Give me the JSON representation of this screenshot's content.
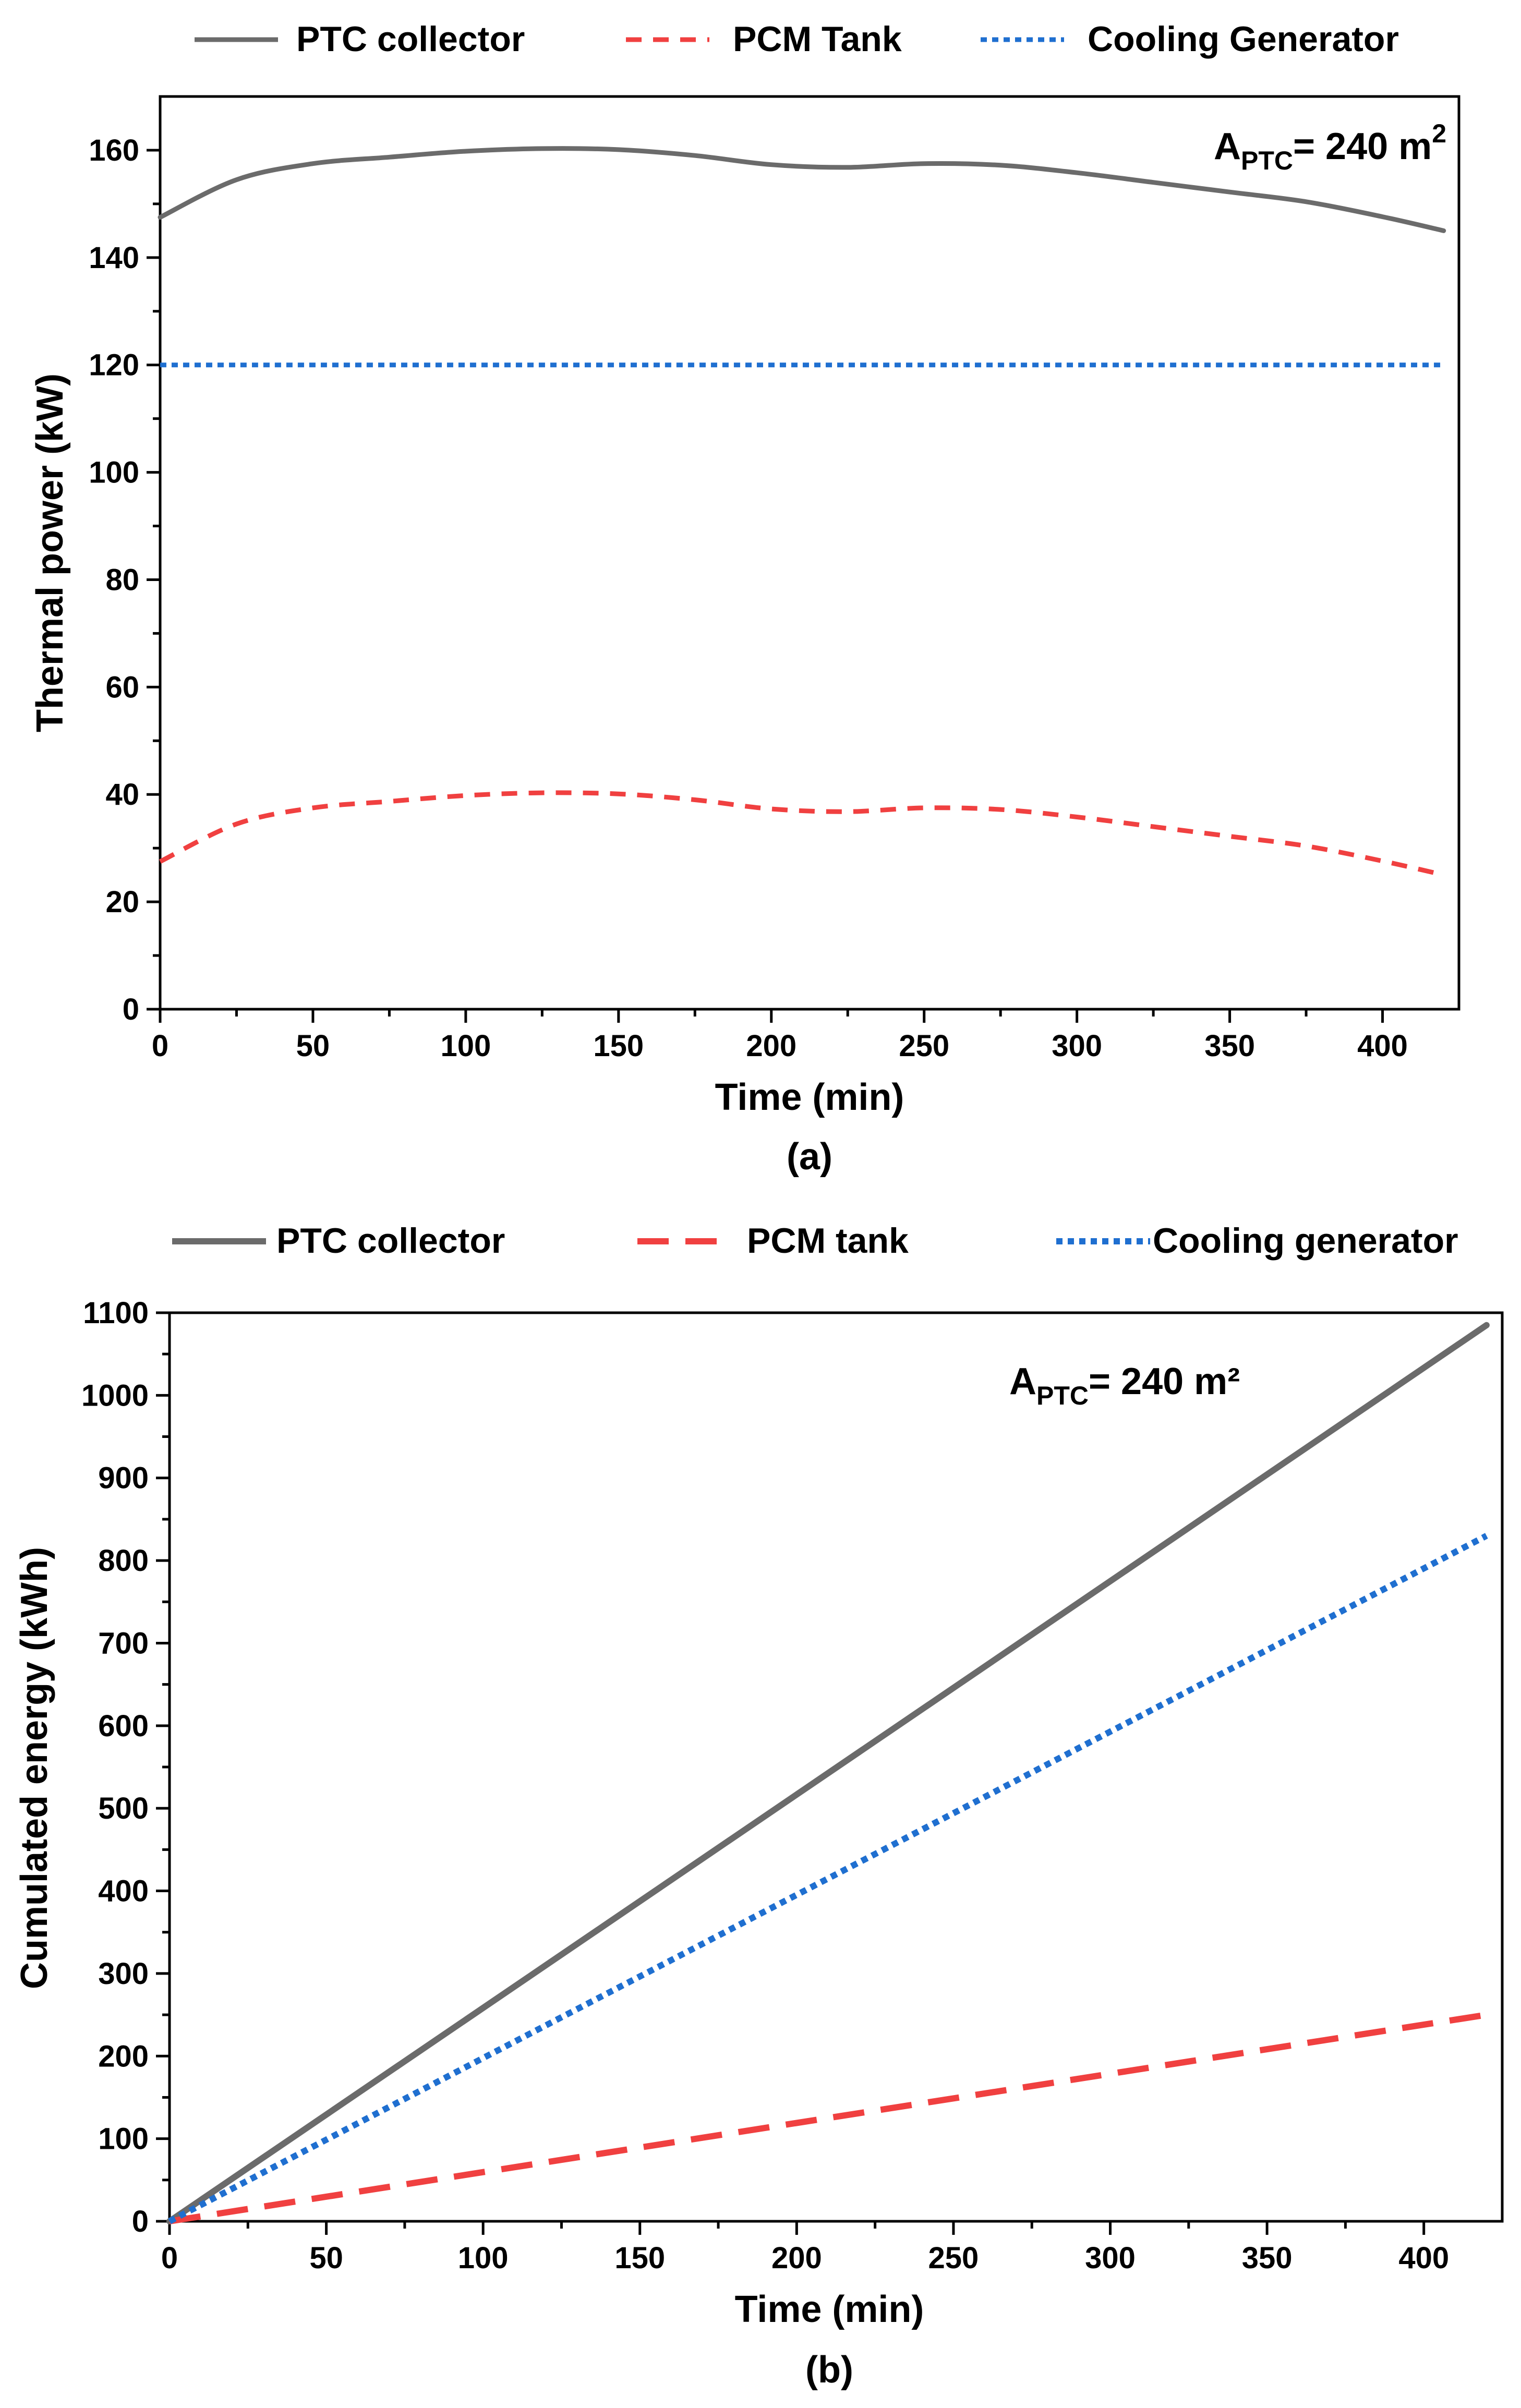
{
  "chart_data": [
    {
      "type": "line",
      "panel_label": "(a)",
      "xlabel": "Time (min)",
      "ylabel": "Thermal power (kW)",
      "xlim": [
        0,
        425
      ],
      "ylim": [
        0,
        170
      ],
      "xticks": [
        0,
        50,
        100,
        150,
        200,
        250,
        300,
        350,
        400
      ],
      "yticks": [
        0,
        20,
        40,
        60,
        80,
        100,
        120,
        140,
        160
      ],
      "grid": false,
      "legend_position": "top",
      "annotation": {
        "main": "A",
        "sub": "PTC",
        "value": "= 240 m",
        "sup": "2"
      },
      "series": [
        {
          "name": "PTC collector",
          "color": "#6b6b6b",
          "style": "solid",
          "x": [
            0,
            25,
            50,
            75,
            100,
            125,
            150,
            175,
            200,
            225,
            250,
            275,
            300,
            325,
            350,
            375,
            400,
            420
          ],
          "y": [
            147.5,
            154.5,
            157.5,
            158.7,
            159.8,
            160.3,
            160.1,
            159.0,
            157.3,
            156.8,
            157.5,
            157.2,
            155.8,
            154.0,
            152.2,
            150.4,
            147.6,
            145.0
          ]
        },
        {
          "name": "PCM Tank",
          "color": "#f04040",
          "style": "dashed",
          "x": [
            0,
            25,
            50,
            75,
            100,
            125,
            150,
            175,
            200,
            225,
            250,
            275,
            300,
            325,
            350,
            375,
            400,
            420
          ],
          "y": [
            27.5,
            34.5,
            37.5,
            38.7,
            39.8,
            40.3,
            40.1,
            39.0,
            37.3,
            36.8,
            37.5,
            37.2,
            35.8,
            34.0,
            32.2,
            30.4,
            27.6,
            25.0
          ]
        },
        {
          "name": "Cooling Generator",
          "color": "#1f6fd0",
          "style": "dotted",
          "x": [
            0,
            420
          ],
          "y": [
            120,
            120
          ]
        }
      ]
    },
    {
      "type": "line",
      "panel_label": "(b)",
      "xlabel": "Time (min)",
      "ylabel": "Cumulated energy (kWh)",
      "xlim": [
        0,
        425
      ],
      "ylim": [
        0,
        1100
      ],
      "xticks": [
        0,
        50,
        100,
        150,
        200,
        250,
        300,
        350,
        400
      ],
      "yticks": [
        0,
        100,
        200,
        300,
        400,
        500,
        600,
        700,
        800,
        900,
        1000,
        1100
      ],
      "grid": false,
      "legend_position": "top",
      "annotation": {
        "main": "A",
        "sub": "PTC",
        "value": "= 240 m²",
        "sup": ""
      },
      "series": [
        {
          "name": "PTC collector",
          "color": "#6b6b6b",
          "style": "solid",
          "x": [
            0,
            420
          ],
          "y": [
            0,
            1085
          ]
        },
        {
          "name": "PCM tank",
          "color": "#f04040",
          "style": "longdash",
          "x": [
            0,
            420
          ],
          "y": [
            0,
            250
          ]
        },
        {
          "name": "Cooling generator",
          "color": "#1f6fd0",
          "style": "dotted",
          "x": [
            0,
            420
          ],
          "y": [
            0,
            830
          ]
        }
      ]
    }
  ]
}
